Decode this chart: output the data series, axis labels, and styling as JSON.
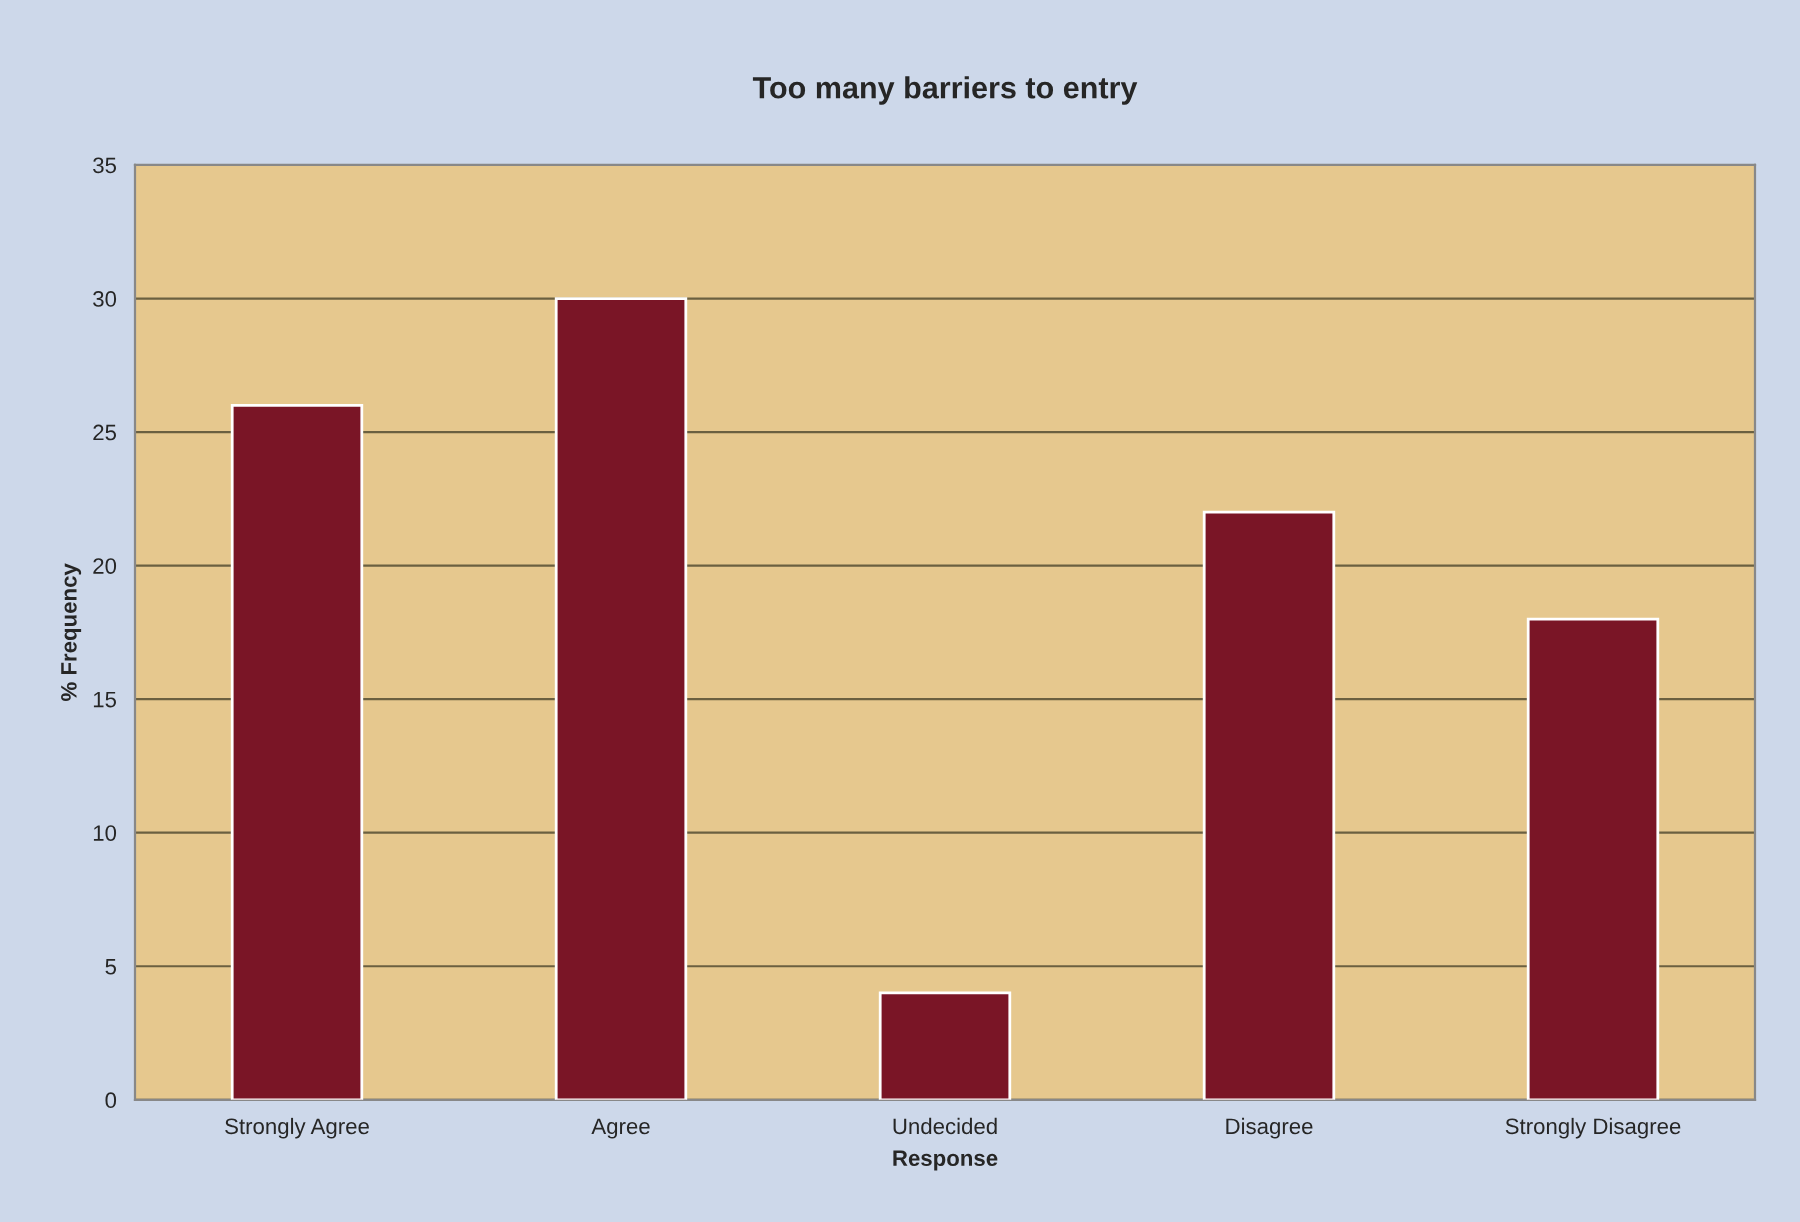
{
  "chart_data": {
    "type": "bar",
    "title": "Too many barriers to entry",
    "xlabel": "Response",
    "ylabel": "% Frequency",
    "categories": [
      "Strongly Agree",
      "Agree",
      "Undecided",
      "Disagree",
      "Strongly Disagree"
    ],
    "values": [
      26,
      30,
      4,
      22,
      18
    ],
    "color": "#7a1526",
    "ylim": [
      0,
      35
    ],
    "yticks": [
      0,
      5,
      10,
      15,
      20,
      25,
      30,
      35
    ],
    "grid": "y",
    "legend": false
  }
}
